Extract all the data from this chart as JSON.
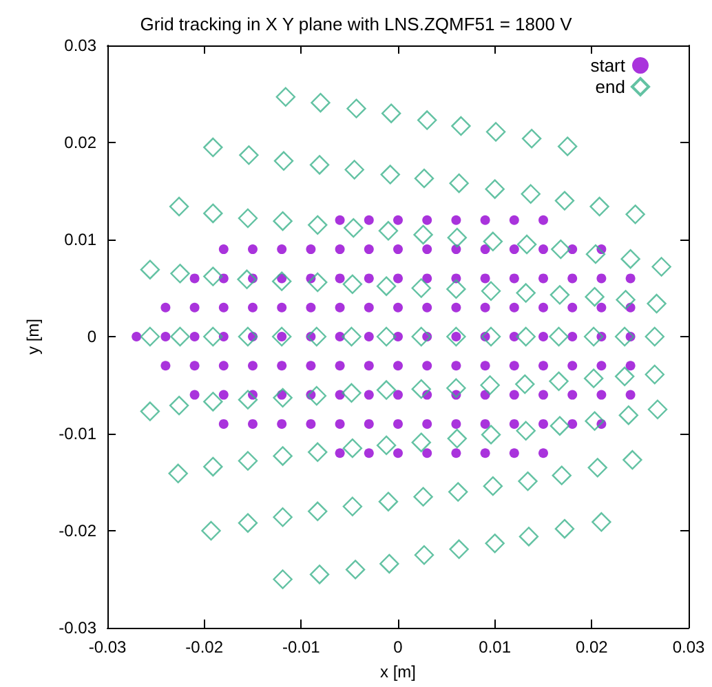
{
  "chart_data": {
    "type": "scatter",
    "title": "Grid tracking in X Y plane with LNS.ZQMF51 = 1800 V",
    "xlabel": "x [m]",
    "ylabel": "y [m]",
    "xlim": [
      -0.03,
      0.03
    ],
    "ylim": [
      -0.03,
      0.03
    ],
    "xticks": [
      -0.03,
      -0.02,
      -0.01,
      0,
      0.01,
      0.02,
      0.03
    ],
    "yticks": [
      -0.03,
      -0.02,
      -0.01,
      0,
      0.01,
      0.02,
      0.03
    ],
    "grid": false,
    "legend": "top right",
    "series": [
      {
        "name": "start",
        "color": "#9400d3",
        "marker": "circle",
        "x": [
          -0.027,
          -0.024,
          -0.021,
          -0.018,
          -0.015,
          -0.012,
          -0.009,
          -0.006,
          -0.003,
          0,
          0.003,
          0.006,
          0.009,
          0.012,
          0.015,
          0.018,
          0.021,
          0.024,
          -0.024,
          -0.021,
          -0.018,
          -0.015,
          -0.012,
          -0.009,
          -0.006,
          -0.003,
          0,
          0.003,
          0.006,
          0.009,
          0.012,
          0.015,
          0.018,
          0.021,
          0.024,
          -0.024,
          -0.021,
          -0.018,
          -0.015,
          -0.012,
          -0.009,
          -0.006,
          -0.003,
          0,
          0.003,
          0.006,
          0.009,
          0.012,
          0.015,
          0.018,
          0.021,
          0.024,
          -0.021,
          -0.018,
          -0.015,
          -0.012,
          -0.009,
          -0.006,
          -0.003,
          0,
          0.003,
          0.006,
          0.009,
          0.012,
          0.015,
          0.018,
          0.021,
          0.024,
          -0.021,
          -0.018,
          -0.015,
          -0.012,
          -0.009,
          -0.006,
          -0.003,
          0,
          0.003,
          0.006,
          0.009,
          0.012,
          0.015,
          0.018,
          0.021,
          0.024,
          -0.018,
          -0.015,
          -0.012,
          -0.009,
          -0.006,
          -0.003,
          0,
          0.003,
          0.006,
          0.009,
          0.012,
          0.015,
          0.018,
          0.021,
          -0.018,
          -0.015,
          -0.012,
          -0.009,
          -0.006,
          -0.003,
          0,
          0.003,
          0.006,
          0.009,
          0.012,
          0.015,
          0.018,
          0.021,
          -0.006,
          -0.003,
          0,
          0.003,
          0.006,
          0.009,
          0.012,
          0.015,
          -0.006,
          -0.003,
          0,
          0.003,
          0.006,
          0.009,
          0.012,
          0.015
        ],
        "values": [
          0,
          0,
          0,
          0,
          0,
          0,
          0,
          0,
          0,
          0,
          0,
          0,
          0,
          0,
          0,
          0,
          0,
          0,
          0.003,
          0.003,
          0.003,
          0.003,
          0.003,
          0.003,
          0.003,
          0.003,
          0.003,
          0.003,
          0.003,
          0.003,
          0.003,
          0.003,
          0.003,
          0.003,
          0.003,
          -0.003,
          -0.003,
          -0.003,
          -0.003,
          -0.003,
          -0.003,
          -0.003,
          -0.003,
          -0.003,
          -0.003,
          -0.003,
          -0.003,
          -0.003,
          -0.003,
          -0.003,
          -0.003,
          -0.003,
          0.006,
          0.006,
          0.006,
          0.006,
          0.006,
          0.006,
          0.006,
          0.006,
          0.006,
          0.006,
          0.006,
          0.006,
          0.006,
          0.006,
          0.006,
          0.006,
          -0.006,
          -0.006,
          -0.006,
          -0.006,
          -0.006,
          -0.006,
          -0.006,
          -0.006,
          -0.006,
          -0.006,
          -0.006,
          -0.006,
          -0.006,
          -0.006,
          -0.006,
          -0.006,
          0.009,
          0.009,
          0.009,
          0.009,
          0.009,
          0.009,
          0.009,
          0.009,
          0.009,
          0.009,
          0.009,
          0.009,
          0.009,
          0.009,
          -0.009,
          -0.009,
          -0.009,
          -0.009,
          -0.009,
          -0.009,
          -0.009,
          -0.009,
          -0.009,
          -0.009,
          -0.009,
          -0.009,
          -0.009,
          -0.009,
          0.012,
          0.012,
          0.012,
          0.012,
          0.012,
          0.012,
          0.012,
          0.012,
          -0.012,
          -0.012,
          -0.012,
          -0.012,
          -0.012,
          -0.012,
          -0.012,
          -0.012
        ]
      },
      {
        "name": "end",
        "color": "#3cb38c",
        "marker": "diamond",
        "x": [
          -0.0116,
          -0.008,
          -0.0043,
          -0.0007,
          0.003,
          0.0065,
          0.0101,
          0.0138,
          0.0175,
          -0.0191,
          -0.0154,
          -0.0118,
          -0.0081,
          -0.0045,
          -0.0008,
          0.0027,
          0.0063,
          0.01,
          0.0137,
          0.0172,
          0.0208,
          0.0245,
          -0.0226,
          -0.0191,
          -0.0155,
          -0.0119,
          -0.0083,
          -0.0046,
          -0.001,
          0.0026,
          0.0061,
          0.0098,
          0.0133,
          0.0168,
          0.0204,
          0.024,
          0.0272,
          -0.0256,
          -0.0225,
          -0.0191,
          -0.0156,
          -0.012,
          -0.0083,
          -0.0047,
          -0.0012,
          0.0024,
          0.006,
          0.0096,
          0.0132,
          0.0167,
          0.0203,
          0.0235,
          0.0267,
          -0.0256,
          -0.0225,
          -0.0191,
          -0.0155,
          -0.012,
          -0.0084,
          -0.0048,
          -0.0012,
          0.0024,
          0.006,
          0.0096,
          0.0132,
          0.0166,
          0.0202,
          0.0234,
          0.0265,
          -0.0256,
          -0.0226,
          -0.0191,
          -0.0155,
          -0.0119,
          -0.0084,
          -0.0048,
          -0.0012,
          0.0024,
          0.006,
          0.0095,
          0.0131,
          0.0166,
          0.0202,
          0.0234,
          0.0265,
          -0.0227,
          -0.0191,
          -0.0155,
          -0.0119,
          -0.0083,
          -0.0047,
          -0.0012,
          0.0024,
          0.0061,
          0.0096,
          0.0132,
          0.0167,
          0.0203,
          0.0238,
          0.0268,
          -0.0193,
          -0.0155,
          -0.0119,
          -0.0083,
          -0.0047,
          -0.001,
          0.0026,
          0.0062,
          0.0098,
          0.0134,
          0.0169,
          0.0206,
          0.0242,
          -0.0119,
          -0.0081,
          -0.0044,
          -0.0009,
          0.0027,
          0.0063,
          0.01,
          0.0135,
          0.0172,
          0.021
        ],
        "values": [
          0.0247,
          0.0241,
          0.0235,
          0.023,
          0.0223,
          0.0217,
          0.0211,
          0.0204,
          0.0196,
          0.0195,
          0.0187,
          0.0181,
          0.0177,
          0.0172,
          0.0167,
          0.0163,
          0.0158,
          0.0152,
          0.0147,
          0.014,
          0.0134,
          0.0126,
          0.0134,
          0.0127,
          0.0122,
          0.0119,
          0.0115,
          0.0112,
          0.0109,
          0.0105,
          0.0102,
          0.0098,
          0.0095,
          0.009,
          0.0085,
          0.008,
          0.0072,
          0.0069,
          0.0065,
          0.0062,
          0.0059,
          0.0057,
          0.0056,
          0.0054,
          0.0052,
          0.005,
          0.0049,
          0.0047,
          0.0045,
          0.0043,
          0.0041,
          0.0038,
          0.0034,
          0,
          0,
          0,
          0,
          0,
          0,
          0,
          0,
          0,
          0,
          0,
          0,
          0,
          0,
          0,
          0,
          -0.0077,
          -0.0071,
          -0.0067,
          -0.0065,
          -0.0063,
          -0.0061,
          -0.0058,
          -0.0055,
          -0.0054,
          -0.0053,
          -0.005,
          -0.0049,
          -0.0046,
          -0.0043,
          -0.0041,
          -0.0039,
          -0.0141,
          -0.0134,
          -0.0128,
          -0.0123,
          -0.0119,
          -0.0115,
          -0.0112,
          -0.0109,
          -0.0105,
          -0.0101,
          -0.0097,
          -0.0092,
          -0.0087,
          -0.0081,
          -0.0075,
          -0.02,
          -0.0192,
          -0.0186,
          -0.018,
          -0.0175,
          -0.017,
          -0.0165,
          -0.016,
          -0.0154,
          -0.0149,
          -0.0143,
          -0.0135,
          -0.0127,
          -0.025,
          -0.0245,
          -0.024,
          -0.0234,
          -0.0225,
          -0.0219,
          -0.0213,
          -0.0206,
          -0.0198,
          -0.0191
        ]
      }
    ]
  }
}
